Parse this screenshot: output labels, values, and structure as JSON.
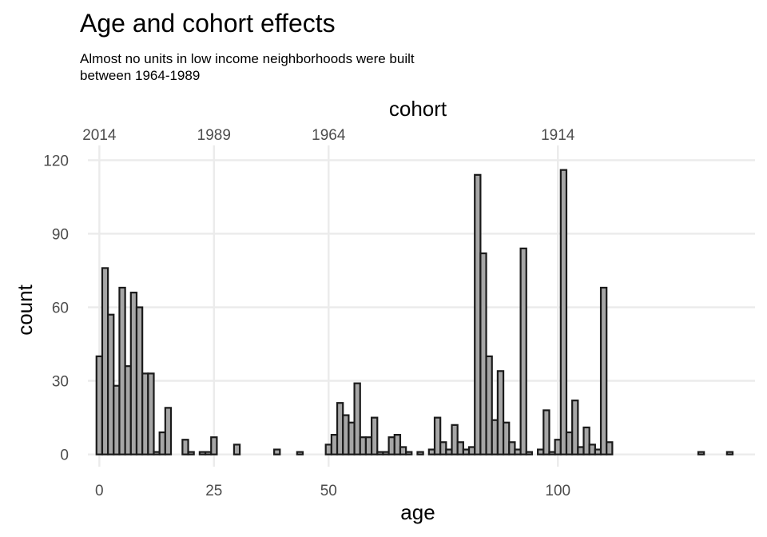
{
  "chart_data": {
    "type": "bar",
    "title": "Age and cohort effects",
    "subtitle_lines": [
      "Almost no units in low income neighborhoods were built",
      "between 1964-1989"
    ],
    "xlabel": "age",
    "ylabel": "count",
    "secondary_xlabel": "cohort",
    "xlim": [
      -2.5,
      143
    ],
    "ylim": [
      -5,
      126
    ],
    "x_ticks": [
      0,
      25,
      50,
      100
    ],
    "y_ticks": [
      0,
      30,
      60,
      90,
      120
    ],
    "secondary_x_ticks": [
      {
        "age": 0,
        "label": "2014"
      },
      {
        "age": 25,
        "label": "1989"
      },
      {
        "age": 50,
        "label": "1964"
      },
      {
        "age": 100,
        "label": "1914"
      }
    ],
    "grid": true,
    "bin_width": 1.25,
    "bins": {
      "start": [
        -0.625,
        0.625,
        1.875,
        3.125,
        4.375,
        5.625,
        6.875,
        8.125,
        9.375,
        10.625,
        11.875,
        13.125,
        14.375,
        15.625,
        16.875,
        18.125,
        19.375,
        20.625,
        21.875,
        23.125,
        24.375,
        25.625,
        26.875,
        28.125,
        29.375,
        30.625,
        31.875,
        33.125,
        34.375,
        35.625,
        36.875,
        38.125,
        39.375,
        40.625,
        41.875,
        43.125,
        44.375,
        45.625,
        46.875,
        48.125,
        49.375,
        50.625,
        51.875,
        53.125,
        54.375,
        55.625,
        56.875,
        58.125,
        59.375,
        60.625,
        61.875,
        63.125,
        64.375,
        65.625,
        66.875,
        68.125,
        69.375,
        70.625,
        71.875,
        73.125,
        74.375,
        75.625,
        76.875,
        78.125,
        79.375,
        80.625,
        81.875,
        83.125,
        84.375,
        85.625,
        86.875,
        88.125,
        89.375,
        90.625,
        91.875,
        93.125,
        94.375,
        95.625,
        96.875,
        98.125,
        99.375,
        100.625,
        101.875,
        103.125,
        104.375,
        105.625,
        106.875,
        108.125,
        109.375,
        110.625,
        111.875,
        113.125,
        114.375,
        115.625,
        116.875,
        118.125,
        119.375,
        120.625,
        121.875,
        123.125,
        124.375,
        125.625,
        126.875,
        128.125,
        129.375,
        130.625,
        131.875,
        133.125,
        134.375,
        135.625,
        136.875
      ],
      "counts": [
        40,
        76,
        57,
        28,
        68,
        36,
        66,
        60,
        33,
        33,
        1,
        9,
        19,
        0,
        0,
        6,
        1,
        0,
        1,
        1,
        7,
        0,
        0,
        0,
        4,
        0,
        0,
        0,
        0,
        0,
        0,
        2,
        0,
        0,
        0,
        1,
        0,
        0,
        0,
        0,
        4,
        8,
        21,
        16,
        13,
        29,
        7,
        7,
        15,
        1,
        1,
        7,
        8,
        3,
        1,
        0,
        1,
        0,
        2,
        15,
        5,
        2,
        12,
        5,
        2,
        3,
        114,
        82,
        40,
        14,
        34,
        13,
        5,
        2,
        84,
        1,
        0,
        2,
        18,
        1,
        6,
        116,
        9,
        22,
        3,
        11,
        4,
        2,
        68,
        5,
        0,
        0,
        0,
        0,
        0,
        0,
        0,
        0,
        0,
        0,
        0,
        0,
        0,
        0,
        0,
        1,
        0,
        0,
        0,
        0,
        1
      ]
    },
    "colors": {
      "fill": "#a6a6a6",
      "stroke": "#1a1a1a",
      "grid": "#ebebeb"
    }
  }
}
